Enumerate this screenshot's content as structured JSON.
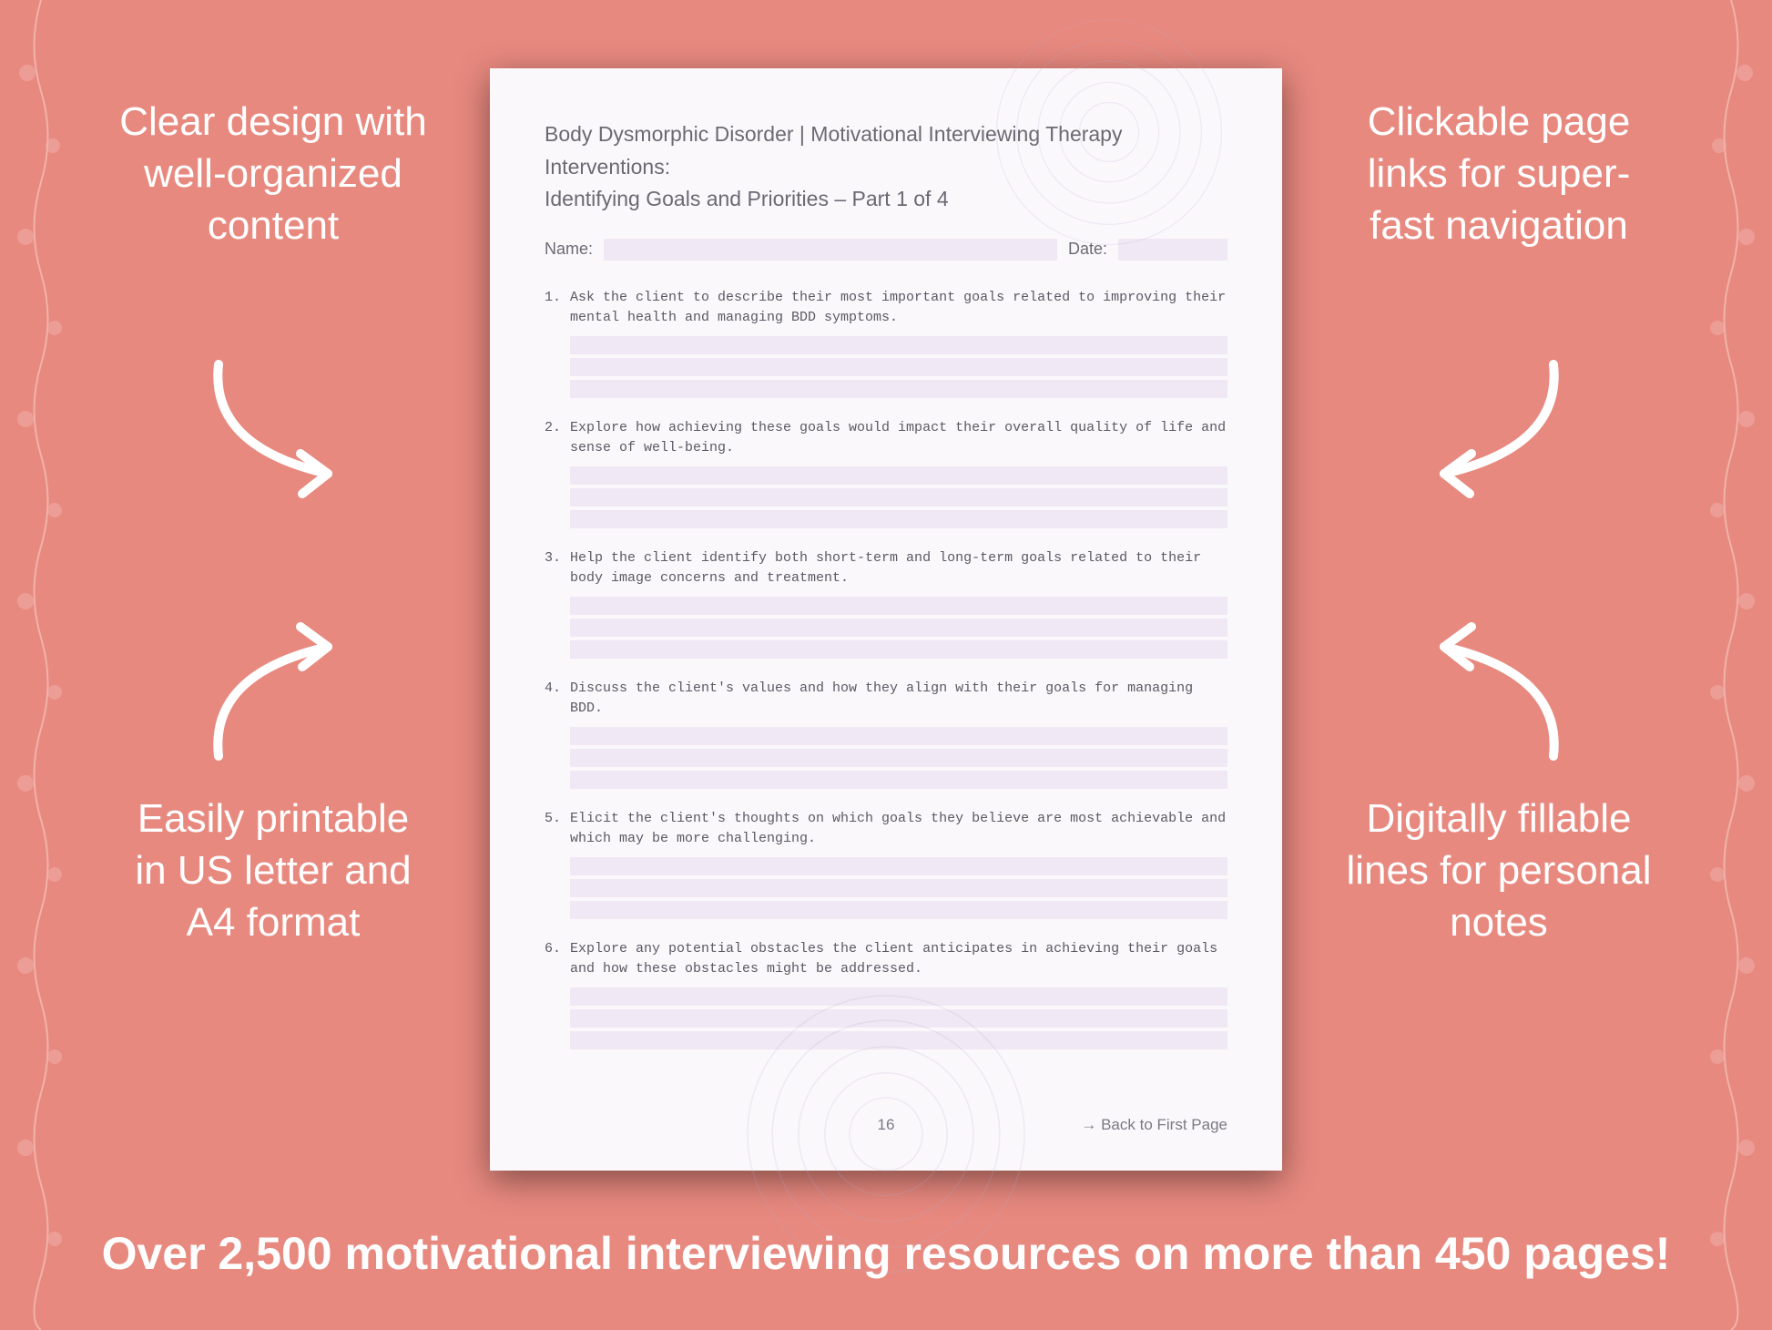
{
  "background_color": "#e8897f",
  "page_bg": "#fbf8fc",
  "field_bg": "#f0e8f4",
  "text_muted": "#6a6a72",
  "callouts": {
    "tl": "Clear design with well-organized content",
    "tr": "Clickable page links for super-fast navigation",
    "bl": "Easily printable in US letter and A4 format",
    "br": "Digitally fillable lines for personal notes"
  },
  "bottom_banner": "Over 2,500 motivational interviewing resources on more than 450 pages!",
  "page": {
    "title_line1": "Body Dysmorphic Disorder | Motivational Interviewing Therapy Interventions:",
    "title_line2": "Identifying Goals and Priorities – Part 1 of 4",
    "name_label": "Name:",
    "date_label": "Date:",
    "page_number": "16",
    "back_link": "→ Back to First Page",
    "questions": [
      {
        "n": "1.",
        "t": "Ask the client to describe their most important goals related to improving their mental health and managing BDD symptoms."
      },
      {
        "n": "2.",
        "t": "Explore how achieving these goals would impact their overall quality of life and sense of well-being."
      },
      {
        "n": "3.",
        "t": "Help the client identify both short-term and long-term goals related to their body image concerns and treatment."
      },
      {
        "n": "4.",
        "t": "Discuss the client's values and how they align with their goals for managing BDD."
      },
      {
        "n": "5.",
        "t": "Elicit the client's thoughts on which goals they believe are most achievable and which may be more challenging."
      },
      {
        "n": "6.",
        "t": "Explore any potential obstacles the client anticipates in achieving their goals and how these obstacles might be addressed."
      }
    ]
  }
}
